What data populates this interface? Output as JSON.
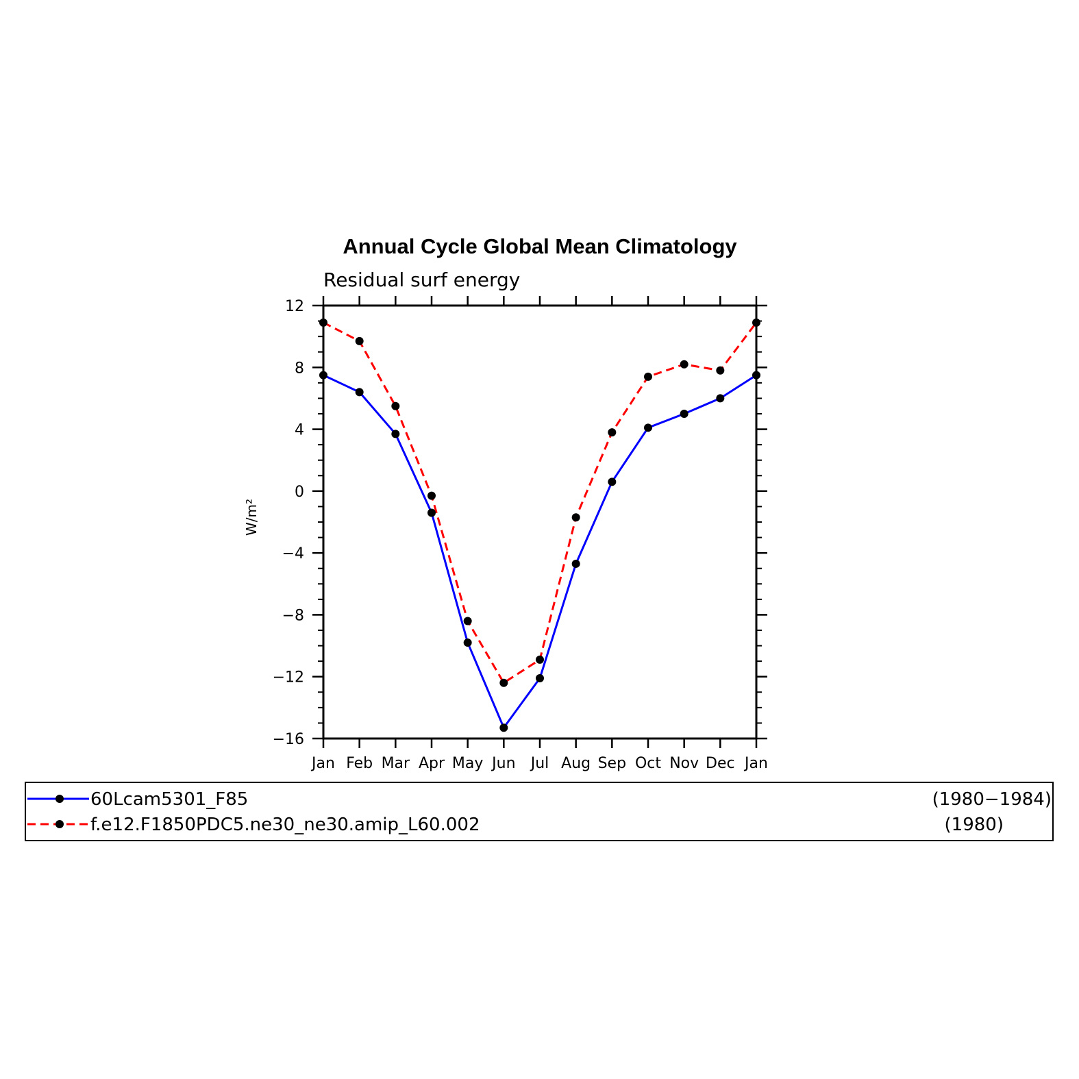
{
  "chart_data": {
    "type": "line",
    "title": "Annual Cycle Global Mean Climatology",
    "subtitle": "Residual surf energy",
    "xlabel": "",
    "ylabel": "W/m²",
    "categories": [
      "Jan",
      "Feb",
      "Mar",
      "Apr",
      "May",
      "Jun",
      "Jul",
      "Aug",
      "Sep",
      "Oct",
      "Nov",
      "Dec",
      "Jan"
    ],
    "ylim": [
      -16,
      12
    ],
    "yticks": [
      "12",
      "8",
      "4",
      "0",
      "−4",
      "−8",
      "−12",
      "−16"
    ],
    "ytick_values": [
      12,
      8,
      4,
      0,
      -4,
      -8,
      -12,
      -16
    ],
    "grid": false,
    "legend_position": "bottom",
    "series": [
      {
        "name": "60Lcam5301_F85",
        "period": "(1980−1984)",
        "color": "#0000ff",
        "dash": "solid",
        "values": [
          7.5,
          6.4,
          3.7,
          -1.4,
          -9.8,
          -15.3,
          -12.1,
          -4.7,
          0.6,
          4.1,
          5.0,
          6.0,
          7.5
        ]
      },
      {
        "name": "f.e12.F1850PDC5.ne30_ne30.amip_L60.002",
        "period": "(1980)",
        "color": "#ff0000",
        "dash": "dashed",
        "values": [
          10.9,
          9.7,
          5.5,
          -0.3,
          -8.4,
          -12.4,
          -10.9,
          -1.7,
          3.8,
          7.4,
          8.2,
          7.8,
          10.9
        ]
      }
    ],
    "marker_color": "#000000"
  }
}
